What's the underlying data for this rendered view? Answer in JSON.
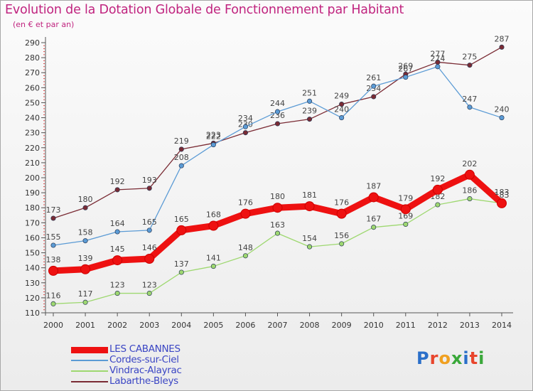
{
  "header": {
    "title": "Evolution de la Dotation Globale de Fonctionnement par Habitant",
    "subtitle": "(en € et par an)"
  },
  "logo": {
    "text": "Proxiti",
    "colors": [
      "#2a6fc9",
      "#e8452c",
      "#f0a020",
      "#3aa83a",
      "#2a6fc9",
      "#e8452c",
      "#3aa83a"
    ]
  },
  "chart_data": {
    "type": "line",
    "title": "Evolution de la Dotation Globale de Fonctionnement par Habitant",
    "subtitle": "(en € et par an)",
    "xlabel": "",
    "ylabel": "",
    "x": [
      "2000",
      "2001",
      "2002",
      "2003",
      "2004",
      "2005",
      "2006",
      "2007",
      "2008",
      "2009",
      "2010",
      "2011",
      "2012",
      "2013",
      "2014"
    ],
    "ylim": [
      110,
      290
    ],
    "yticks": [
      110,
      120,
      130,
      140,
      150,
      160,
      170,
      180,
      190,
      200,
      210,
      220,
      230,
      240,
      250,
      260,
      270,
      280,
      290
    ],
    "grid": false,
    "legend_position": "bottom-left",
    "series": [
      {
        "name": "LES CABANNES",
        "color": "#ee1111",
        "values": [
          138,
          139,
          145,
          146,
          165,
          168,
          176,
          180,
          181,
          176,
          187,
          179,
          192,
          202,
          183
        ]
      },
      {
        "name": "Cordes-sur-Ciel",
        "color": "#5b9bd5",
        "values": [
          155,
          158,
          164,
          165,
          208,
          222,
          234,
          244,
          251,
          240,
          261,
          267,
          274,
          247,
          240
        ]
      },
      {
        "name": "Vindrac-Alayrac",
        "color": "#9ed870",
        "values": [
          116,
          117,
          123,
          123,
          137,
          141,
          148,
          163,
          154,
          156,
          167,
          169,
          182,
          186,
          183
        ]
      },
      {
        "name": "Labarthe-Bleys",
        "color": "#7a2b34",
        "values": [
          173,
          180,
          192,
          193,
          219,
          223,
          230,
          236,
          239,
          249,
          254,
          269,
          277,
          275,
          287
        ]
      }
    ]
  }
}
